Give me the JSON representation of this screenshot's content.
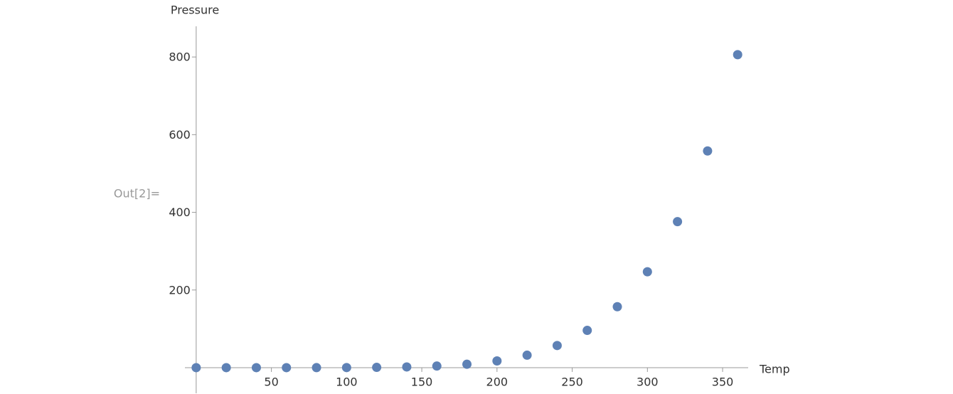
{
  "prompt": "Out[2]=",
  "chart_data": {
    "type": "scatter",
    "xlabel": "Temp",
    "ylabel": "Pressure",
    "x": [
      0,
      20,
      40,
      60,
      80,
      100,
      120,
      140,
      160,
      180,
      200,
      220,
      240,
      260,
      280,
      300,
      320,
      340,
      360
    ],
    "series": [
      {
        "color": "#5e81b5",
        "values": [
          0.0002,
          0.0012,
          0.006,
          0.03,
          0.09,
          0.27,
          0.75,
          1.85,
          4.2,
          8.8,
          17.3,
          32.1,
          57,
          96,
          157,
          247,
          376,
          558,
          806
        ]
      }
    ],
    "xlim": [
      -7.5,
      367
    ],
    "ylim": [
      -66,
      879
    ],
    "xticks": [
      50,
      100,
      150,
      200,
      250,
      300,
      350
    ],
    "yticks": [
      200,
      400,
      600,
      800
    ]
  }
}
